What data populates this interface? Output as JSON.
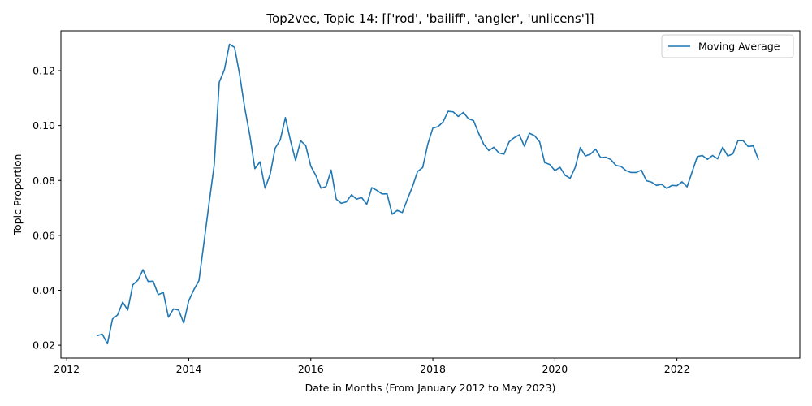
{
  "chart_data": {
    "type": "line",
    "title": "Top2vec, Topic 14: [['rod', 'bailiff', 'angler', 'unlicens']]",
    "xlabel": "Date in Months (From January 2012 to May 2023)",
    "ylabel": "Topic Proportion",
    "xlim": [
      "2011-11-27",
      "2024-01-06"
    ],
    "ylim": [
      0.0153,
      0.1345
    ],
    "x_ticks": [
      "2012-01-01",
      "2014-01-01",
      "2016-01-01",
      "2018-01-01",
      "2020-01-01",
      "2022-01-01"
    ],
    "x_tick_labels": [
      "2012",
      "2014",
      "2016",
      "2018",
      "2020",
      "2022"
    ],
    "y_ticks": [
      0.02,
      0.04,
      0.06,
      0.08,
      0.1,
      0.12
    ],
    "y_tick_labels": [
      "0.02",
      "0.04",
      "0.06",
      "0.08",
      "0.10",
      "0.12"
    ],
    "grid": false,
    "legend": {
      "position": "top-right"
    },
    "series": [
      {
        "name": "Moving Average",
        "color": "#1f77b4",
        "points": [
          [
            "2012-07",
            0.0235
          ],
          [
            "2012-08",
            0.024
          ],
          [
            "2012-09",
            0.0205
          ],
          [
            "2012-10",
            0.0295
          ],
          [
            "2012-11",
            0.031
          ],
          [
            "2012-12",
            0.0357
          ],
          [
            "2013-01",
            0.0328
          ],
          [
            "2013-02",
            0.042
          ],
          [
            "2013-03",
            0.0437
          ],
          [
            "2013-04",
            0.0475
          ],
          [
            "2013-05",
            0.0432
          ],
          [
            "2013-06",
            0.0433
          ],
          [
            "2013-07",
            0.0384
          ],
          [
            "2013-08",
            0.0392
          ],
          [
            "2013-09",
            0.0302
          ],
          [
            "2013-10",
            0.0332
          ],
          [
            "2013-11",
            0.0328
          ],
          [
            "2013-12",
            0.0281
          ],
          [
            "2014-01",
            0.0362
          ],
          [
            "2014-02",
            0.0402
          ],
          [
            "2014-03",
            0.0435
          ],
          [
            "2014-04",
            0.0575
          ],
          [
            "2014-05",
            0.0718
          ],
          [
            "2014-06",
            0.0855
          ],
          [
            "2014-07",
            0.1158
          ],
          [
            "2014-08",
            0.1203
          ],
          [
            "2014-09",
            0.1296
          ],
          [
            "2014-10",
            0.1285
          ],
          [
            "2014-11",
            0.1186
          ],
          [
            "2014-12",
            0.1065
          ],
          [
            "2015-01",
            0.0965
          ],
          [
            "2015-02",
            0.0843
          ],
          [
            "2015-03",
            0.0868
          ],
          [
            "2015-04",
            0.0772
          ],
          [
            "2015-05",
            0.0822
          ],
          [
            "2015-06",
            0.0918
          ],
          [
            "2015-07",
            0.0948
          ],
          [
            "2015-08",
            0.1029
          ],
          [
            "2015-09",
            0.0945
          ],
          [
            "2015-10",
            0.0873
          ],
          [
            "2015-11",
            0.0945
          ],
          [
            "2015-12",
            0.0927
          ],
          [
            "2016-01",
            0.0852
          ],
          [
            "2016-02",
            0.0818
          ],
          [
            "2016-03",
            0.0772
          ],
          [
            "2016-04",
            0.0778
          ],
          [
            "2016-05",
            0.0838
          ],
          [
            "2016-06",
            0.0732
          ],
          [
            "2016-07",
            0.0717
          ],
          [
            "2016-08",
            0.0722
          ],
          [
            "2016-09",
            0.0748
          ],
          [
            "2016-10",
            0.0732
          ],
          [
            "2016-11",
            0.0738
          ],
          [
            "2016-12",
            0.0713
          ],
          [
            "2017-01",
            0.0774
          ],
          [
            "2017-02",
            0.0764
          ],
          [
            "2017-03",
            0.0751
          ],
          [
            "2017-04",
            0.0751
          ],
          [
            "2017-05",
            0.0677
          ],
          [
            "2017-06",
            0.0691
          ],
          [
            "2017-07",
            0.0683
          ],
          [
            "2017-08",
            0.0732
          ],
          [
            "2017-09",
            0.0778
          ],
          [
            "2017-10",
            0.0833
          ],
          [
            "2017-11",
            0.0847
          ],
          [
            "2017-12",
            0.0932
          ],
          [
            "2018-01",
            0.0991
          ],
          [
            "2018-02",
            0.0996
          ],
          [
            "2018-03",
            0.1013
          ],
          [
            "2018-04",
            0.1052
          ],
          [
            "2018-05",
            0.105
          ],
          [
            "2018-06",
            0.1033
          ],
          [
            "2018-07",
            0.1048
          ],
          [
            "2018-08",
            0.1025
          ],
          [
            "2018-09",
            0.1018
          ],
          [
            "2018-10",
            0.0972
          ],
          [
            "2018-11",
            0.0932
          ],
          [
            "2018-12",
            0.0909
          ],
          [
            "2019-01",
            0.0921
          ],
          [
            "2019-02",
            0.09
          ],
          [
            "2019-03",
            0.0896
          ],
          [
            "2019-04",
            0.0941
          ],
          [
            "2019-05",
            0.0956
          ],
          [
            "2019-06",
            0.0966
          ],
          [
            "2019-07",
            0.0925
          ],
          [
            "2019-08",
            0.0972
          ],
          [
            "2019-09",
            0.0963
          ],
          [
            "2019-10",
            0.0941
          ],
          [
            "2019-11",
            0.0865
          ],
          [
            "2019-12",
            0.0858
          ],
          [
            "2020-01",
            0.0836
          ],
          [
            "2020-02",
            0.0848
          ],
          [
            "2020-03",
            0.0819
          ],
          [
            "2020-04",
            0.0808
          ],
          [
            "2020-05",
            0.0848
          ],
          [
            "2020-06",
            0.092
          ],
          [
            "2020-07",
            0.0889
          ],
          [
            "2020-08",
            0.0896
          ],
          [
            "2020-09",
            0.0914
          ],
          [
            "2020-10",
            0.0883
          ],
          [
            "2020-11",
            0.0885
          ],
          [
            "2020-12",
            0.0876
          ],
          [
            "2021-01",
            0.0855
          ],
          [
            "2021-02",
            0.0851
          ],
          [
            "2021-03",
            0.0836
          ],
          [
            "2021-04",
            0.0829
          ],
          [
            "2021-05",
            0.0829
          ],
          [
            "2021-06",
            0.0838
          ],
          [
            "2021-07",
            0.0799
          ],
          [
            "2021-08",
            0.0794
          ],
          [
            "2021-09",
            0.0782
          ],
          [
            "2021-10",
            0.0786
          ],
          [
            "2021-11",
            0.0771
          ],
          [
            "2021-12",
            0.0782
          ],
          [
            "2022-01",
            0.0781
          ],
          [
            "2022-02",
            0.0795
          ],
          [
            "2022-03",
            0.0777
          ],
          [
            "2022-04",
            0.0832
          ],
          [
            "2022-05",
            0.0887
          ],
          [
            "2022-06",
            0.0891
          ],
          [
            "2022-07",
            0.0877
          ],
          [
            "2022-08",
            0.0891
          ],
          [
            "2022-09",
            0.0879
          ],
          [
            "2022-10",
            0.0921
          ],
          [
            "2022-11",
            0.0889
          ],
          [
            "2022-12",
            0.0897
          ],
          [
            "2023-01",
            0.0945
          ],
          [
            "2023-02",
            0.0945
          ],
          [
            "2023-03",
            0.0924
          ],
          [
            "2023-04",
            0.0926
          ],
          [
            "2023-05",
            0.0877
          ]
        ]
      }
    ]
  }
}
